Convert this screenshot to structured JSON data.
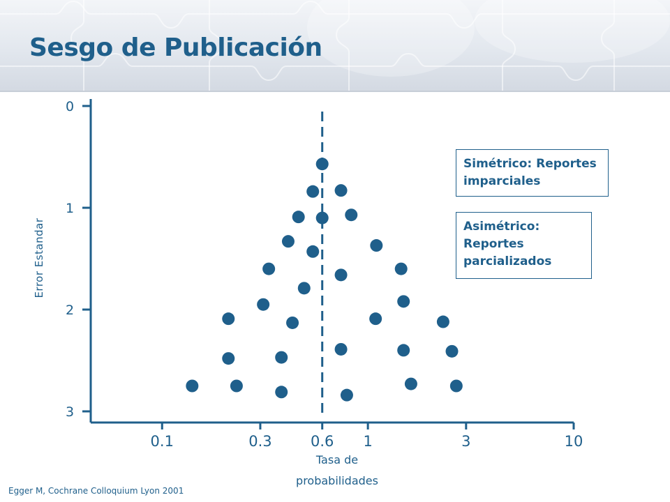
{
  "slide": {
    "title": "Sesgo de Publicación",
    "citation": "Egger M, Cochrane Colloquium Lyon 2001",
    "accent_color": "#1f5f8b"
  },
  "callouts": {
    "symmetric": "Simétrico: Reportes\n imparciales",
    "asymmetric": "Asimétrico:\nReportes\nparcializados"
  },
  "chart_data": {
    "type": "scatter",
    "title": "",
    "xlabel": "Tasa de\nprobabilidades",
    "ylabel": "Error Estandar",
    "x_scale": "log",
    "x_ticks": [
      {
        "value": 0.1,
        "label": "0.1"
      },
      {
        "value": 0.3,
        "label": "0.3"
      },
      {
        "value": 0.6,
        "label": "0.6"
      },
      {
        "value": 1,
        "label": "1"
      },
      {
        "value": 3,
        "label": "3"
      },
      {
        "value": 10,
        "label": "10"
      }
    ],
    "y_ticks": [
      {
        "value": 0,
        "label": "0"
      },
      {
        "value": 1,
        "label": "1"
      },
      {
        "value": 2,
        "label": "2"
      },
      {
        "value": 3,
        "label": "3"
      }
    ],
    "xlim": [
      0.045,
      10
    ],
    "ylim": [
      3.1,
      0
    ],
    "y_inverted": true,
    "reference_line": {
      "x": 0.6,
      "style": "dashed"
    },
    "marker_color": "#1f5f8b",
    "points": [
      {
        "x": 0.6,
        "y": 0.57
      },
      {
        "x": 0.54,
        "y": 0.84
      },
      {
        "x": 0.74,
        "y": 0.83
      },
      {
        "x": 0.46,
        "y": 1.09
      },
      {
        "x": 0.6,
        "y": 1.1
      },
      {
        "x": 0.83,
        "y": 1.07
      },
      {
        "x": 0.41,
        "y": 1.33
      },
      {
        "x": 0.54,
        "y": 1.43
      },
      {
        "x": 1.1,
        "y": 1.37
      },
      {
        "x": 0.33,
        "y": 1.6
      },
      {
        "x": 0.74,
        "y": 1.66
      },
      {
        "x": 1.45,
        "y": 1.6
      },
      {
        "x": 0.49,
        "y": 1.79
      },
      {
        "x": 0.31,
        "y": 1.95
      },
      {
        "x": 1.49,
        "y": 1.92
      },
      {
        "x": 0.21,
        "y": 2.09
      },
      {
        "x": 0.43,
        "y": 2.13
      },
      {
        "x": 1.09,
        "y": 2.09
      },
      {
        "x": 2.32,
        "y": 2.12
      },
      {
        "x": 0.74,
        "y": 2.39
      },
      {
        "x": 1.49,
        "y": 2.4
      },
      {
        "x": 2.56,
        "y": 2.41
      },
      {
        "x": 0.21,
        "y": 2.48
      },
      {
        "x": 0.38,
        "y": 2.47
      },
      {
        "x": 0.14,
        "y": 2.75
      },
      {
        "x": 0.23,
        "y": 2.75
      },
      {
        "x": 0.38,
        "y": 2.81
      },
      {
        "x": 1.62,
        "y": 2.73
      },
      {
        "x": 2.69,
        "y": 2.75
      },
      {
        "x": 0.79,
        "y": 2.84
      }
    ]
  }
}
